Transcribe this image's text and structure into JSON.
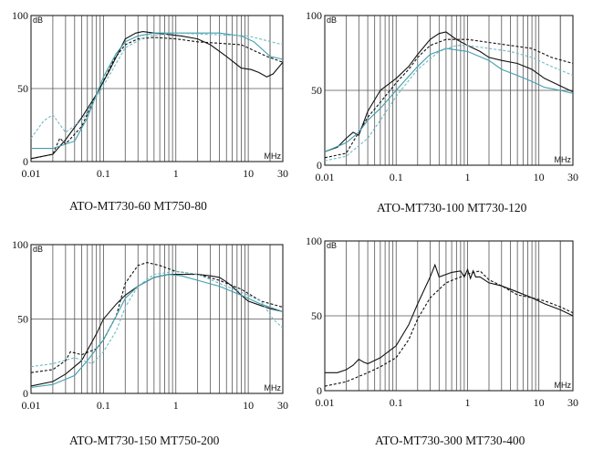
{
  "chart_data": [
    {
      "type": "line",
      "caption": "ATO-MT730-60  MT750-80",
      "x_scale": "log",
      "xlim": [
        0.01,
        30
      ],
      "ylim": [
        0,
        100
      ],
      "x_ticks": [
        "0.01",
        "0.1",
        "1",
        "10",
        "30"
      ],
      "y_ticks": [
        "0",
        "50",
        "100"
      ],
      "xlabel": "MHz",
      "ylabel": "dB",
      "series": [
        {
          "name": "solid-black",
          "color": "#111111",
          "dash": "",
          "x": [
            0.01,
            0.02,
            0.03,
            0.05,
            0.08,
            0.12,
            0.2,
            0.28,
            0.35,
            0.5,
            0.8,
            1.2,
            2,
            3,
            5,
            8,
            11,
            14,
            18,
            22,
            30
          ],
          "y": [
            2,
            5,
            15,
            30,
            46,
            62,
            84,
            88,
            89,
            88,
            87,
            86,
            84,
            80,
            72,
            64,
            63,
            61,
            58,
            60,
            68
          ]
        },
        {
          "name": "dashed-black",
          "color": "#111111",
          "dash": "3,2",
          "x": [
            0.01,
            0.02,
            0.025,
            0.03,
            0.05,
            0.07,
            0.1,
            0.14,
            0.2,
            0.3,
            0.5,
            1,
            2,
            4,
            8,
            12,
            18,
            30
          ],
          "y": [
            2,
            5,
            16,
            12,
            24,
            40,
            55,
            70,
            80,
            84,
            85,
            84,
            82,
            81,
            80,
            76,
            72,
            68
          ]
        },
        {
          "name": "teal",
          "color": "#3f9fae",
          "dash": "",
          "x": [
            0.01,
            0.02,
            0.04,
            0.06,
            0.1,
            0.15,
            0.2,
            0.3,
            0.5,
            1,
            2,
            4,
            8,
            12,
            20,
            30
          ],
          "y": [
            9,
            9,
            14,
            30,
            58,
            74,
            82,
            86,
            88,
            88,
            88,
            88,
            86,
            82,
            72,
            70
          ]
        },
        {
          "name": "teal-dashed",
          "color": "#6fbac4",
          "dash": "3,2",
          "x": [
            0.01,
            0.015,
            0.02,
            0.03,
            0.05,
            0.1,
            0.2,
            0.4,
            1,
            3,
            10,
            30
          ],
          "y": [
            16,
            28,
            32,
            20,
            28,
            52,
            78,
            86,
            88,
            87,
            86,
            80
          ]
        }
      ]
    },
    {
      "type": "line",
      "caption": "ATO-MT730-100  MT730-120",
      "x_scale": "log",
      "xlim": [
        0.01,
        30
      ],
      "ylim": [
        0,
        100
      ],
      "x_ticks": [
        "0.01",
        "0.1",
        "1",
        "10",
        "30"
      ],
      "y_ticks": [
        "0",
        "50",
        "100"
      ],
      "xlabel": "MHz",
      "ylabel": "dB",
      "series": [
        {
          "name": "solid-black",
          "color": "#111111",
          "dash": "",
          "x": [
            0.01,
            0.015,
            0.02,
            0.025,
            0.03,
            0.04,
            0.06,
            0.1,
            0.15,
            0.2,
            0.3,
            0.4,
            0.5,
            0.7,
            1,
            1.5,
            2,
            3,
            5,
            8,
            12,
            20,
            30
          ],
          "y": [
            9,
            12,
            18,
            22,
            20,
            36,
            50,
            58,
            66,
            74,
            84,
            88,
            89,
            84,
            80,
            76,
            72,
            70,
            68,
            64,
            58,
            53,
            49
          ]
        },
        {
          "name": "dashed-black",
          "color": "#111111",
          "dash": "3,2",
          "x": [
            0.01,
            0.02,
            0.03,
            0.04,
            0.06,
            0.1,
            0.15,
            0.2,
            0.3,
            0.5,
            1,
            2,
            4,
            8,
            15,
            30
          ],
          "y": [
            5,
            8,
            22,
            32,
            42,
            55,
            64,
            72,
            80,
            84,
            84,
            82,
            80,
            78,
            72,
            68
          ]
        },
        {
          "name": "teal",
          "color": "#3f9fae",
          "dash": "",
          "x": [
            0.01,
            0.02,
            0.03,
            0.04,
            0.06,
            0.1,
            0.2,
            0.3,
            0.5,
            1,
            2,
            3,
            5,
            8,
            12,
            20,
            30
          ],
          "y": [
            9,
            15,
            22,
            30,
            38,
            50,
            66,
            74,
            78,
            76,
            70,
            64,
            60,
            56,
            52,
            50,
            48
          ]
        },
        {
          "name": "teal-dashed",
          "color": "#6fbac4",
          "dash": "3,2",
          "x": [
            0.01,
            0.02,
            0.04,
            0.06,
            0.1,
            0.2,
            0.4,
            0.7,
            1,
            2,
            4,
            8,
            15,
            30
          ],
          "y": [
            3,
            6,
            18,
            30,
            46,
            64,
            76,
            80,
            80,
            78,
            76,
            72,
            66,
            60
          ]
        }
      ]
    },
    {
      "type": "line",
      "caption": "ATO-MT730-150  MT750-200",
      "x_scale": "log",
      "xlim": [
        0.01,
        30
      ],
      "ylim": [
        0,
        100
      ],
      "x_ticks": [
        "0.01",
        "0.1",
        "1",
        "10",
        "30"
      ],
      "y_ticks": [
        "0",
        "50",
        "100"
      ],
      "xlabel": "MHz",
      "ylabel": "dB",
      "series": [
        {
          "name": "solid-black",
          "color": "#111111",
          "dash": "",
          "x": [
            0.01,
            0.02,
            0.03,
            0.05,
            0.08,
            0.1,
            0.15,
            0.2,
            0.3,
            0.5,
            0.8,
            1,
            2,
            3,
            4,
            5,
            6,
            8,
            10,
            15,
            20,
            30
          ],
          "y": [
            5,
            8,
            13,
            22,
            40,
            50,
            60,
            66,
            72,
            78,
            80,
            80,
            80,
            79,
            78,
            75,
            72,
            66,
            62,
            59,
            57,
            55
          ]
        },
        {
          "name": "dashed-black",
          "color": "#111111",
          "dash": "3,2",
          "x": [
            0.01,
            0.02,
            0.03,
            0.035,
            0.05,
            0.08,
            0.1,
            0.15,
            0.2,
            0.3,
            0.4,
            0.6,
            1,
            2,
            4,
            8,
            15,
            30
          ],
          "y": [
            14,
            16,
            22,
            28,
            26,
            30,
            36,
            52,
            74,
            86,
            88,
            86,
            82,
            80,
            76,
            70,
            62,
            58
          ]
        },
        {
          "name": "teal",
          "color": "#3f9fae",
          "dash": "",
          "x": [
            0.01,
            0.02,
            0.04,
            0.06,
            0.1,
            0.15,
            0.2,
            0.3,
            0.5,
            0.8,
            1.2,
            2,
            4,
            8,
            15,
            30
          ],
          "y": [
            4,
            6,
            12,
            22,
            36,
            52,
            64,
            72,
            78,
            80,
            79,
            76,
            72,
            66,
            60,
            55
          ]
        },
        {
          "name": "teal-dashed",
          "color": "#6fbac4",
          "dash": "3,2",
          "x": [
            0.01,
            0.02,
            0.04,
            0.07,
            0.1,
            0.15,
            0.2,
            0.3,
            0.5,
            1,
            2,
            4,
            8,
            15,
            22,
            30
          ],
          "y": [
            18,
            20,
            24,
            20,
            28,
            42,
            58,
            72,
            80,
            82,
            80,
            74,
            68,
            62,
            50,
            44
          ]
        }
      ]
    },
    {
      "type": "line",
      "caption": "ATO-MT730-300  MT730-400",
      "x_scale": "log",
      "xlim": [
        0.01,
        30
      ],
      "ylim": [
        0,
        100
      ],
      "x_ticks": [
        "0.01",
        "0.1",
        "1",
        "10",
        "30"
      ],
      "y_ticks": [
        "0",
        "50",
        "100"
      ],
      "xlabel": "MHz",
      "ylabel": "dB",
      "series": [
        {
          "name": "solid-black",
          "color": "#111111",
          "dash": "",
          "x": [
            0.01,
            0.015,
            0.02,
            0.025,
            0.03,
            0.035,
            0.04,
            0.06,
            0.1,
            0.15,
            0.2,
            0.25,
            0.3,
            0.35,
            0.4,
            0.6,
            0.8,
            0.9,
            1,
            1.1,
            1.2,
            1.3,
            1.5,
            2,
            3,
            5,
            8,
            12,
            20,
            30
          ],
          "y": [
            12,
            12,
            14,
            17,
            21,
            19,
            18,
            22,
            30,
            44,
            58,
            68,
            76,
            84,
            76,
            79,
            80,
            76,
            81,
            75,
            80,
            76,
            76,
            72,
            70,
            66,
            62,
            58,
            54,
            50
          ]
        },
        {
          "name": "dashed-black",
          "color": "#111111",
          "dash": "3,2",
          "x": [
            0.01,
            0.02,
            0.04,
            0.06,
            0.1,
            0.15,
            0.2,
            0.3,
            0.5,
            0.8,
            1,
            1.5,
            2,
            3,
            5,
            8,
            12,
            20,
            30
          ],
          "y": [
            3,
            6,
            12,
            16,
            22,
            34,
            48,
            62,
            72,
            76,
            78,
            80,
            74,
            70,
            64,
            62,
            60,
            56,
            52
          ]
        }
      ]
    }
  ]
}
